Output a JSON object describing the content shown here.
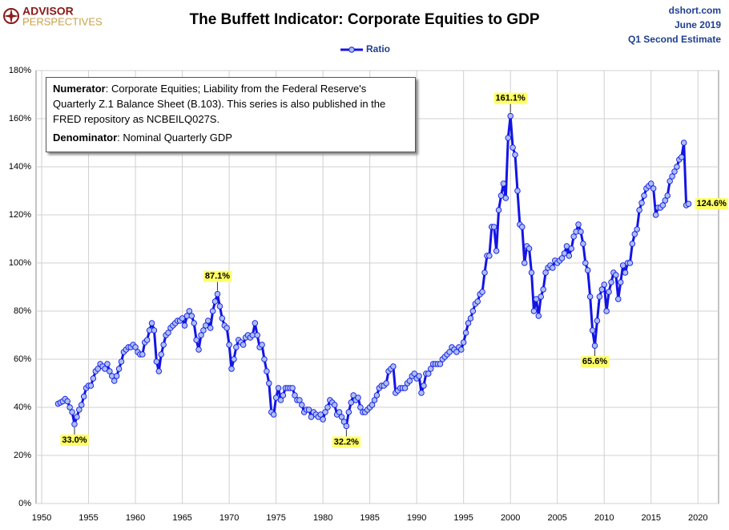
{
  "brand": {
    "line1": "ADVISOR",
    "line2": "PERSPECTIVES"
  },
  "source": {
    "site": "dshort.com",
    "date": "June 2019",
    "note": "Q1 Second Estimate"
  },
  "note_box": [
    {
      "bold": "Numerator",
      "text": ": Corporate Equities; Liability from the Federal Reserve's Quarterly Z.1 Balance Sheet (B.103). This series is also published in the FRED repository  as NCBEILQ027S."
    },
    {
      "bold": "Denominator",
      "text": ": Nominal Quarterly GDP"
    }
  ],
  "chart_data": {
    "type": "line",
    "title": "The Buffett Indicator: Corporate Equities to GDP",
    "x": [
      1951.75,
      1952,
      1952.25,
      1952.5,
      1952.75,
      1953,
      1953.25,
      1953.5,
      1953.75,
      1954,
      1954.25,
      1954.5,
      1954.75,
      1955,
      1955.25,
      1955.5,
      1955.75,
      1956,
      1956.25,
      1956.5,
      1956.75,
      1957,
      1957.25,
      1957.5,
      1957.75,
      1958,
      1958.25,
      1958.5,
      1958.75,
      1959,
      1959.25,
      1959.5,
      1959.75,
      1960,
      1960.25,
      1960.5,
      1960.75,
      1961,
      1961.25,
      1961.5,
      1961.75,
      1962,
      1962.25,
      1962.5,
      1962.75,
      1963,
      1963.25,
      1963.5,
      1963.75,
      1964,
      1964.25,
      1964.5,
      1964.75,
      1965,
      1965.25,
      1965.5,
      1965.75,
      1966,
      1966.25,
      1966.5,
      1966.75,
      1967,
      1967.25,
      1967.5,
      1967.75,
      1968,
      1968.25,
      1968.5,
      1968.75,
      1969,
      1969.25,
      1969.5,
      1969.75,
      1970,
      1970.25,
      1970.5,
      1970.75,
      1971,
      1971.25,
      1971.5,
      1971.75,
      1972,
      1972.25,
      1972.5,
      1972.75,
      1973,
      1973.25,
      1973.5,
      1973.75,
      1974,
      1974.25,
      1974.5,
      1974.75,
      1975,
      1975.25,
      1975.5,
      1975.75,
      1976,
      1976.25,
      1976.5,
      1976.75,
      1977,
      1977.25,
      1977.5,
      1977.75,
      1978,
      1978.25,
      1978.5,
      1978.75,
      1979,
      1979.25,
      1979.5,
      1979.75,
      1980,
      1980.25,
      1980.5,
      1980.75,
      1981,
      1981.25,
      1981.5,
      1981.75,
      1982,
      1982.25,
      1982.5,
      1982.75,
      1983,
      1983.25,
      1983.5,
      1983.75,
      1984,
      1984.25,
      1984.5,
      1984.75,
      1985,
      1985.25,
      1985.5,
      1985.75,
      1986,
      1986.25,
      1986.5,
      1986.75,
      1987,
      1987.25,
      1987.5,
      1987.75,
      1988,
      1988.25,
      1988.5,
      1988.75,
      1989,
      1989.25,
      1989.5,
      1989.75,
      1990,
      1990.25,
      1990.5,
      1990.75,
      1991,
      1991.25,
      1991.5,
      1991.75,
      1992,
      1992.25,
      1992.5,
      1992.75,
      1993,
      1993.25,
      1993.5,
      1993.75,
      1994,
      1994.25,
      1994.5,
      1994.75,
      1995,
      1995.25,
      1995.5,
      1995.75,
      1996,
      1996.25,
      1996.5,
      1996.75,
      1997,
      1997.25,
      1997.5,
      1997.75,
      1998,
      1998.25,
      1998.5,
      1998.75,
      1999,
      1999.25,
      1999.5,
      1999.75,
      2000,
      2000.25,
      2000.5,
      2000.75,
      2001,
      2001.25,
      2001.5,
      2001.75,
      2002,
      2002.25,
      2002.5,
      2002.75,
      2003,
      2003.25,
      2003.5,
      2003.75,
      2004,
      2004.25,
      2004.5,
      2004.75,
      2005,
      2005.25,
      2005.5,
      2005.75,
      2006,
      2006.25,
      2006.5,
      2006.75,
      2007,
      2007.25,
      2007.5,
      2007.75,
      2008,
      2008.25,
      2008.5,
      2008.75,
      2009,
      2009.25,
      2009.5,
      2009.75,
      2010,
      2010.25,
      2010.5,
      2010.75,
      2011,
      2011.25,
      2011.5,
      2011.75,
      2012,
      2012.25,
      2012.5,
      2012.75,
      2013,
      2013.25,
      2013.5,
      2013.75,
      2014,
      2014.25,
      2014.5,
      2014.75,
      2015,
      2015.25,
      2015.5,
      2015.75,
      2016,
      2016.25,
      2016.5,
      2016.75,
      2017,
      2017.25,
      2017.5,
      2017.75,
      2018,
      2018.25,
      2018.5,
      2018.75,
      2019
    ],
    "series": [
      {
        "name": "Ratio",
        "color": "#1414e6",
        "marker_color": "#a9c0f2",
        "values": [
          41.5,
          42,
          42.5,
          43.5,
          42.5,
          40,
          38,
          33.0,
          36,
          39,
          41,
          44.5,
          48,
          49,
          49,
          52,
          55,
          56,
          58,
          57,
          56,
          58,
          55,
          53,
          51,
          53,
          56,
          59,
          63,
          64,
          65,
          65,
          66,
          65,
          63,
          62,
          62,
          67,
          68,
          72,
          75,
          72,
          59,
          55,
          62,
          66,
          70,
          71,
          73,
          74,
          75,
          76,
          76,
          77,
          74,
          78,
          80,
          78,
          75,
          68,
          64,
          70,
          72,
          74,
          76,
          73,
          80,
          84,
          87.1,
          82,
          77,
          74,
          73,
          66,
          56,
          60,
          65,
          68,
          67,
          66,
          69,
          70,
          69,
          70,
          75,
          70,
          65,
          66,
          60,
          55,
          50,
          38,
          37,
          44,
          48,
          43,
          45,
          48,
          48,
          48,
          48,
          45,
          43,
          43,
          41,
          38,
          39,
          39,
          36,
          38,
          37,
          36,
          37,
          35,
          38,
          40,
          43,
          42,
          41,
          37,
          38,
          36,
          34,
          32.2,
          38,
          42,
          45,
          43,
          44,
          40,
          38,
          38,
          39,
          40,
          41,
          43,
          45,
          48,
          49,
          49,
          50,
          55,
          56,
          57,
          46,
          47,
          48,
          48,
          48,
          50,
          51,
          53,
          54,
          52,
          53,
          46,
          49,
          54,
          54,
          56,
          58,
          58,
          58,
          58,
          60,
          61,
          62,
          63,
          65,
          64,
          63,
          65,
          64,
          67,
          71,
          75,
          77,
          80,
          83,
          84,
          87,
          88,
          96,
          103,
          103,
          115,
          115,
          105,
          122,
          128,
          133,
          127,
          152,
          161.1,
          148,
          145,
          130,
          116,
          115,
          100,
          107,
          106,
          96,
          80,
          85,
          78,
          86,
          89,
          96,
          98,
          99,
          98,
          101,
          100,
          101,
          102,
          104,
          107,
          103,
          106,
          111,
          113,
          116,
          113,
          108,
          100,
          97,
          86,
          72,
          65.6,
          76,
          86,
          89,
          91,
          80,
          88,
          92,
          96,
          95,
          85,
          92,
          99,
          96,
          100,
          100,
          108,
          112,
          114,
          122,
          125,
          128,
          131,
          132,
          133,
          131,
          120,
          123,
          123,
          124,
          126,
          128,
          134,
          136,
          138,
          140,
          143,
          144,
          150,
          124,
          124.6
        ]
      }
    ],
    "annotations": [
      {
        "x": 1953.5,
        "label": "33.0%",
        "position": "below"
      },
      {
        "x": 1968.75,
        "label": "87.1%",
        "position": "above"
      },
      {
        "x": 1982.5,
        "label": "32.2%",
        "position": "below"
      },
      {
        "x": 2000,
        "label": "161.1%",
        "position": "above"
      },
      {
        "x": 2009,
        "label": "65.6%",
        "position": "below"
      },
      {
        "x": 2019,
        "label": "124.6%",
        "position": "right"
      }
    ],
    "xlim": [
      1949.4,
      2022.2
    ],
    "xticks": [
      1950,
      1955,
      1960,
      1965,
      1970,
      1975,
      1980,
      1985,
      1990,
      1995,
      2000,
      2005,
      2010,
      2015,
      2020
    ],
    "ylim": [
      0,
      180
    ],
    "yticks": [
      {
        "value": 0,
        "label": "0%"
      },
      {
        "value": 20,
        "label": "20%"
      },
      {
        "value": 40,
        "label": "40%"
      },
      {
        "value": 60,
        "label": "60%"
      },
      {
        "value": 80,
        "label": "80%"
      },
      {
        "value": 100,
        "label": "100%"
      },
      {
        "value": 120,
        "label": "120%"
      },
      {
        "value": 140,
        "label": "140%"
      },
      {
        "value": 160,
        "label": "160%"
      },
      {
        "value": 180,
        "label": "180%"
      }
    ],
    "grid": true,
    "legend": "top"
  }
}
